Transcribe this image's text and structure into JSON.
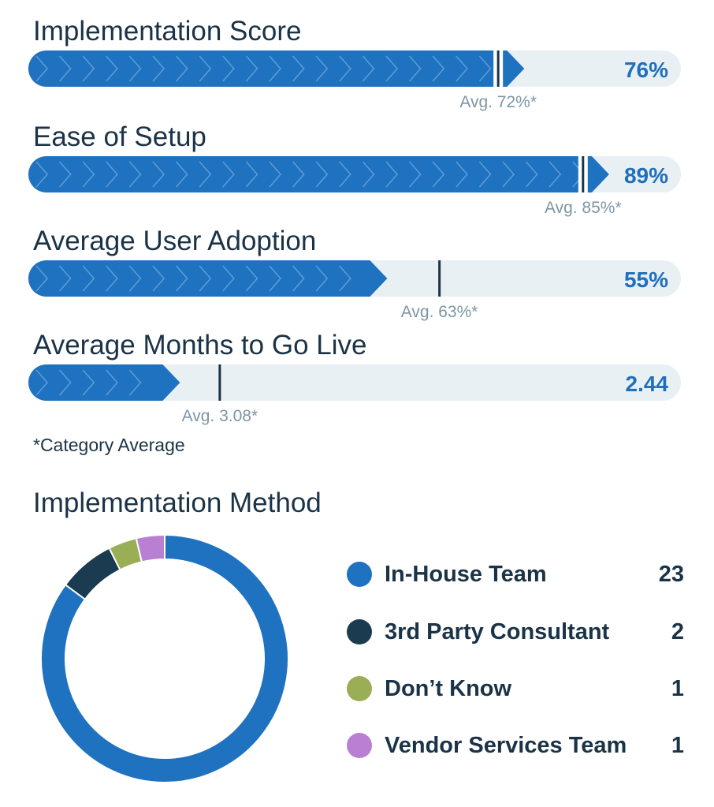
{
  "colors": {
    "bar_fill": "#1f72bf",
    "bar_track": "#e9f0f3",
    "avg_marker": "#1b3347",
    "chevron": "#5b9bd8",
    "value_text": "#1f6fbd",
    "avg_text": "#7e95a6"
  },
  "metrics": [
    {
      "title": "Implementation Score",
      "value_label": "76%",
      "value": 76,
      "avg_label": "Avg. 72%*",
      "avg": 72,
      "max": 100
    },
    {
      "title": "Ease of Setup",
      "value_label": "89%",
      "value": 89,
      "avg_label": "Avg. 85%*",
      "avg": 85,
      "max": 100
    },
    {
      "title": "Average User Adoption",
      "value_label": "55%",
      "value": 55,
      "avg_label": "Avg. 63%*",
      "avg": 63,
      "max": 100
    },
    {
      "title": "Average Months to Go Live",
      "value_label": "2.44",
      "value": 2.44,
      "avg_label": "Avg. 3.08*",
      "avg": 3.08,
      "max": 10.5
    }
  ],
  "footnote": "*Category Average",
  "chart_data": {
    "type": "pie",
    "title": "Implementation Method",
    "donut": true,
    "categories": [
      "In-House Team",
      "3rd Party Consultant",
      "Don’t Know",
      "Vendor Services Team"
    ],
    "values": [
      23,
      2,
      1,
      1
    ],
    "colors": [
      "#1f72bf",
      "#1b3b50",
      "#9aae56",
      "#b97fd2"
    ]
  },
  "legend": [
    {
      "label": "In-House Team",
      "count": "23",
      "color": "#1f72bf"
    },
    {
      "label": "3rd Party Consultant",
      "count": "2",
      "color": "#1b3b50"
    },
    {
      "label": "Don’t Know",
      "count": "1",
      "color": "#9aae56"
    },
    {
      "label": "Vendor Services Team",
      "count": "1",
      "color": "#b97fd2"
    }
  ]
}
